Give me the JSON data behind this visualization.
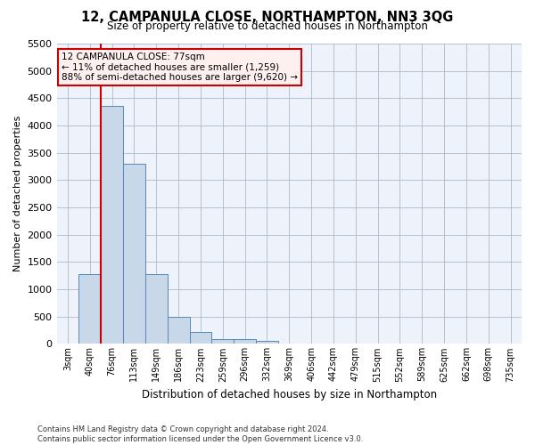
{
  "title": "12, CAMPANULA CLOSE, NORTHAMPTON, NN3 3QG",
  "subtitle": "Size of property relative to detached houses in Northampton",
  "xlabel": "Distribution of detached houses by size in Northampton",
  "ylabel": "Number of detached properties",
  "footer_line1": "Contains HM Land Registry data © Crown copyright and database right 2024.",
  "footer_line2": "Contains public sector information licensed under the Open Government Licence v3.0.",
  "bin_labels": [
    "3sqm",
    "40sqm",
    "76sqm",
    "113sqm",
    "149sqm",
    "186sqm",
    "223sqm",
    "259sqm",
    "296sqm",
    "332sqm",
    "369sqm",
    "406sqm",
    "442sqm",
    "479sqm",
    "515sqm",
    "552sqm",
    "589sqm",
    "625sqm",
    "662sqm",
    "698sqm",
    "735sqm"
  ],
  "bar_values": [
    0,
    1270,
    4360,
    3300,
    1270,
    490,
    220,
    90,
    80,
    60,
    0,
    0,
    0,
    0,
    0,
    0,
    0,
    0,
    0,
    0,
    0
  ],
  "property_label": "12 CAMPANULA CLOSE: 77sqm",
  "annotation_line1": "← 11% of detached houses are smaller (1,259)",
  "annotation_line2": "88% of semi-detached houses are larger (9,620) →",
  "bar_color": "#c8d8e8",
  "bar_edge_color": "#5588bb",
  "vline_color": "#cc0000",
  "annotation_box_facecolor": "#fff0f0",
  "annotation_border_color": "#cc0000",
  "background_color": "#eef2fa",
  "grid_color": "#aabbcc",
  "ylim": [
    0,
    5500
  ],
  "yticks": [
    0,
    500,
    1000,
    1500,
    2000,
    2500,
    3000,
    3500,
    4000,
    4500,
    5000,
    5500
  ],
  "vline_x": 1.5
}
